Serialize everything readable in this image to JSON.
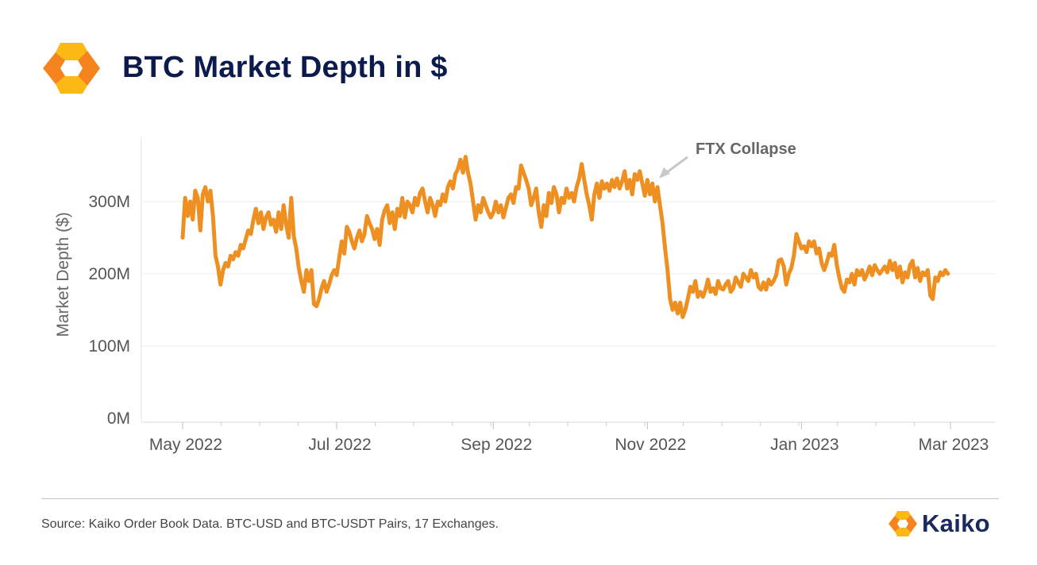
{
  "header": {
    "title": "BTC Market Depth in $",
    "accent_color": "#f5841f",
    "accent_color_light": "#fdb913",
    "title_color": "#0b1b4e"
  },
  "footer": {
    "source": "Source: Kaiko Order Book Data. BTC-USD and BTC-USDT Pairs, 17 Exchanges.",
    "brand": "Kaiko"
  },
  "chart_data": {
    "type": "line",
    "title": "BTC Market Depth in $",
    "xlabel": "",
    "ylabel": "Market Depth ($)",
    "ylim": [
      0,
      370
    ],
    "y_unit": "M USD",
    "y_ticks": [
      {
        "value": 0,
        "label": "0M"
      },
      {
        "value": 100,
        "label": "100M"
      },
      {
        "value": 200,
        "label": "200M"
      },
      {
        "value": 300,
        "label": "300M"
      }
    ],
    "x_ticks": [
      {
        "day": 0,
        "label": "May 2022"
      },
      {
        "day": 61,
        "label": "Jul 2022"
      },
      {
        "day": 123,
        "label": "Sep 2022"
      },
      {
        "day": 184,
        "label": "Nov 2022"
      },
      {
        "day": 245,
        "label": "Jan 2023"
      },
      {
        "day": 304,
        "label": "Mar 2023"
      }
    ],
    "x_start": "2022-05-01",
    "grid": true,
    "line_color": "#ee8f22",
    "series": [
      {
        "name": "BTC Market Depth",
        "points": [
          [
            0,
            250
          ],
          [
            1,
            305
          ],
          [
            2,
            280
          ],
          [
            3,
            300
          ],
          [
            4,
            275
          ],
          [
            5,
            315
          ],
          [
            6,
            305
          ],
          [
            7,
            260
          ],
          [
            8,
            310
          ],
          [
            9,
            320
          ],
          [
            10,
            300
          ],
          [
            11,
            315
          ],
          [
            12,
            280
          ],
          [
            13,
            225
          ],
          [
            14,
            210
          ],
          [
            15,
            185
          ],
          [
            16,
            205
          ],
          [
            17,
            215
          ],
          [
            18,
            210
          ],
          [
            19,
            225
          ],
          [
            20,
            220
          ],
          [
            21,
            230
          ],
          [
            22,
            225
          ],
          [
            23,
            240
          ],
          [
            24,
            235
          ],
          [
            25,
            248
          ],
          [
            26,
            260
          ],
          [
            27,
            255
          ],
          [
            28,
            275
          ],
          [
            29,
            290
          ],
          [
            30,
            270
          ],
          [
            31,
            285
          ],
          [
            32,
            262
          ],
          [
            33,
            278
          ],
          [
            34,
            285
          ],
          [
            35,
            268
          ],
          [
            36,
            275
          ],
          [
            37,
            258
          ],
          [
            38,
            285
          ],
          [
            39,
            262
          ],
          [
            40,
            295
          ],
          [
            41,
            268
          ],
          [
            42,
            250
          ],
          [
            43,
            305
          ],
          [
            44,
            252
          ],
          [
            45,
            235
          ],
          [
            46,
            208
          ],
          [
            47,
            190
          ],
          [
            48,
            175
          ],
          [
            49,
            205
          ],
          [
            50,
            190
          ],
          [
            51,
            205
          ],
          [
            52,
            158
          ],
          [
            53,
            155
          ],
          [
            54,
            165
          ],
          [
            55,
            180
          ],
          [
            56,
            190
          ],
          [
            57,
            175
          ],
          [
            58,
            185
          ],
          [
            59,
            198
          ],
          [
            60,
            205
          ],
          [
            61,
            198
          ],
          [
            62,
            222
          ],
          [
            63,
            245
          ],
          [
            64,
            228
          ],
          [
            65,
            265
          ],
          [
            66,
            258
          ],
          [
            67,
            245
          ],
          [
            68,
            235
          ],
          [
            69,
            250
          ],
          [
            70,
            260
          ],
          [
            71,
            245
          ],
          [
            72,
            255
          ],
          [
            73,
            280
          ],
          [
            74,
            270
          ],
          [
            75,
            262
          ],
          [
            76,
            248
          ],
          [
            77,
            262
          ],
          [
            78,
            240
          ],
          [
            79,
            275
          ],
          [
            80,
            288
          ],
          [
            81,
            295
          ],
          [
            82,
            270
          ],
          [
            83,
            285
          ],
          [
            84,
            262
          ],
          [
            85,
            290
          ],
          [
            86,
            280
          ],
          [
            87,
            305
          ],
          [
            88,
            278
          ],
          [
            89,
            300
          ],
          [
            90,
            295
          ],
          [
            91,
            285
          ],
          [
            92,
            305
          ],
          [
            93,
            295
          ],
          [
            94,
            312
          ],
          [
            95,
            318
          ],
          [
            96,
            300
          ],
          [
            97,
            285
          ],
          [
            98,
            305
          ],
          [
            99,
            295
          ],
          [
            100,
            280
          ],
          [
            101,
            300
          ],
          [
            102,
            295
          ],
          [
            103,
            310
          ],
          [
            104,
            300
          ],
          [
            105,
            320
          ],
          [
            106,
            328
          ],
          [
            107,
            318
          ],
          [
            108,
            338
          ],
          [
            109,
            345
          ],
          [
            110,
            358
          ],
          [
            111,
            340
          ],
          [
            112,
            362
          ],
          [
            113,
            340
          ],
          [
            114,
            325
          ],
          [
            115,
            300
          ],
          [
            116,
            275
          ],
          [
            117,
            295
          ],
          [
            118,
            285
          ],
          [
            119,
            305
          ],
          [
            120,
            295
          ],
          [
            121,
            285
          ],
          [
            122,
            278
          ],
          [
            123,
            285
          ],
          [
            124,
            300
          ],
          [
            125,
            285
          ],
          [
            126,
            295
          ],
          [
            127,
            278
          ],
          [
            128,
            292
          ],
          [
            129,
            305
          ],
          [
            130,
            310
          ],
          [
            131,
            298
          ],
          [
            132,
            320
          ],
          [
            133,
            318
          ],
          [
            134,
            350
          ],
          [
            135,
            340
          ],
          [
            136,
            330
          ],
          [
            137,
            318
          ],
          [
            138,
            295
          ],
          [
            139,
            305
          ],
          [
            140,
            318
          ],
          [
            141,
            285
          ],
          [
            142,
            265
          ],
          [
            143,
            295
          ],
          [
            144,
            280
          ],
          [
            145,
            312
          ],
          [
            146,
            298
          ],
          [
            147,
            320
          ],
          [
            148,
            310
          ],
          [
            149,
            285
          ],
          [
            150,
            305
          ],
          [
            151,
            298
          ],
          [
            152,
            318
          ],
          [
            153,
            305
          ],
          [
            154,
            312
          ],
          [
            155,
            300
          ],
          [
            156,
            320
          ],
          [
            157,
            332
          ],
          [
            158,
            352
          ],
          [
            159,
            330
          ],
          [
            160,
            310
          ],
          [
            161,
            295
          ],
          [
            162,
            275
          ],
          [
            163,
            310
          ],
          [
            164,
            325
          ],
          [
            165,
            305
          ],
          [
            166,
            328
          ],
          [
            167,
            318
          ],
          [
            168,
            325
          ],
          [
            169,
            315
          ],
          [
            170,
            330
          ],
          [
            171,
            320
          ],
          [
            172,
            332
          ],
          [
            173,
            318
          ],
          [
            174,
            328
          ],
          [
            175,
            342
          ],
          [
            176,
            318
          ],
          [
            177,
            330
          ],
          [
            178,
            310
          ],
          [
            179,
            338
          ],
          [
            180,
            330
          ],
          [
            181,
            342
          ],
          [
            182,
            325
          ],
          [
            183,
            308
          ],
          [
            184,
            330
          ],
          [
            185,
            310
          ],
          [
            186,
            325
          ],
          [
            187,
            300
          ],
          [
            188,
            320
          ],
          [
            189,
            295
          ],
          [
            190,
            270
          ],
          [
            191,
            235
          ],
          [
            192,
            205
          ],
          [
            193,
            165
          ],
          [
            194,
            150
          ],
          [
            195,
            160
          ],
          [
            196,
            145
          ],
          [
            197,
            160
          ],
          [
            198,
            140
          ],
          [
            199,
            150
          ],
          [
            200,
            165
          ],
          [
            201,
            182
          ],
          [
            202,
            175
          ],
          [
            203,
            190
          ],
          [
            204,
            168
          ],
          [
            205,
            175
          ],
          [
            206,
            168
          ],
          [
            207,
            178
          ],
          [
            208,
            192
          ],
          [
            209,
            175
          ],
          [
            210,
            180
          ],
          [
            211,
            172
          ],
          [
            212,
            190
          ],
          [
            213,
            180
          ],
          [
            214,
            178
          ],
          [
            215,
            185
          ],
          [
            216,
            190
          ],
          [
            217,
            175
          ],
          [
            218,
            180
          ],
          [
            219,
            195
          ],
          [
            220,
            188
          ],
          [
            221,
            182
          ],
          [
            222,
            200
          ],
          [
            223,
            195
          ],
          [
            224,
            190
          ],
          [
            225,
            205
          ],
          [
            226,
            195
          ],
          [
            227,
            200
          ],
          [
            228,
            182
          ],
          [
            229,
            178
          ],
          [
            230,
            188
          ],
          [
            231,
            178
          ],
          [
            232,
            192
          ],
          [
            233,
            185
          ],
          [
            234,
            190
          ],
          [
            235,
            198
          ],
          [
            236,
            218
          ],
          [
            237,
            220
          ],
          [
            238,
            210
          ],
          [
            239,
            185
          ],
          [
            240,
            200
          ],
          [
            241,
            208
          ],
          [
            242,
            225
          ],
          [
            243,
            255
          ],
          [
            244,
            245
          ],
          [
            245,
            235
          ],
          [
            246,
            238
          ],
          [
            247,
            230
          ],
          [
            248,
            245
          ],
          [
            249,
            238
          ],
          [
            250,
            245
          ],
          [
            251,
            228
          ],
          [
            252,
            235
          ],
          [
            253,
            215
          ],
          [
            254,
            205
          ],
          [
            255,
            215
          ],
          [
            256,
            228
          ],
          [
            257,
            225
          ],
          [
            258,
            240
          ],
          [
            259,
            212
          ],
          [
            260,
            195
          ],
          [
            261,
            180
          ],
          [
            262,
            175
          ],
          [
            263,
            192
          ],
          [
            264,
            188
          ],
          [
            265,
            200
          ],
          [
            266,
            185
          ],
          [
            267,
            205
          ],
          [
            268,
            198
          ],
          [
            269,
            205
          ],
          [
            270,
            192
          ],
          [
            271,
            200
          ],
          [
            272,
            210
          ],
          [
            273,
            198
          ],
          [
            274,
            212
          ],
          [
            275,
            205
          ],
          [
            276,
            200
          ],
          [
            277,
            205
          ],
          [
            278,
            210
          ],
          [
            279,
            202
          ],
          [
            280,
            218
          ],
          [
            281,
            205
          ],
          [
            282,
            215
          ],
          [
            283,
            195
          ],
          [
            284,
            210
          ],
          [
            285,
            188
          ],
          [
            286,
            202
          ],
          [
            287,
            195
          ],
          [
            288,
            212
          ],
          [
            289,
            218
          ],
          [
            290,
            195
          ],
          [
            291,
            208
          ],
          [
            292,
            190
          ],
          [
            293,
            202
          ],
          [
            294,
            198
          ],
          [
            295,
            205
          ],
          [
            296,
            170
          ],
          [
            297,
            165
          ],
          [
            298,
            195
          ],
          [
            299,
            190
          ],
          [
            300,
            202
          ],
          [
            301,
            198
          ],
          [
            302,
            205
          ],
          [
            303,
            200
          ]
        ]
      }
    ],
    "annotations": [
      {
        "text": "FTX Collapse",
        "day": 188,
        "value": 332
      }
    ]
  }
}
